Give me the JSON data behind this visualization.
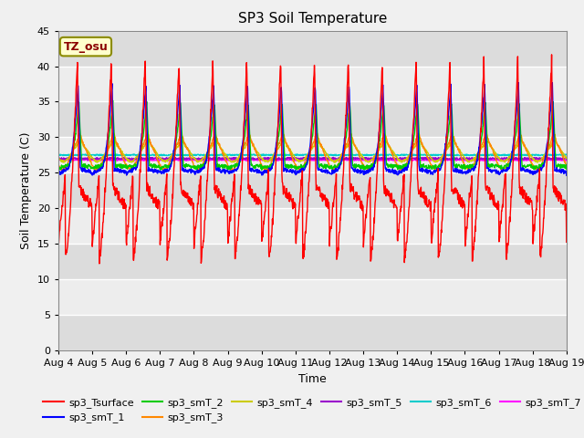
{
  "title": "SP3 Soil Temperature",
  "xlabel": "Time",
  "ylabel": "Soil Temperature (C)",
  "ylim": [
    0,
    45
  ],
  "annotation": "TZ_osu",
  "series_names": [
    "sp3_Tsurface",
    "sp3_smT_1",
    "sp3_smT_2",
    "sp3_smT_3",
    "sp3_smT_4",
    "sp3_smT_5",
    "sp3_smT_6",
    "sp3_smT_7"
  ],
  "series_colors": [
    "#FF0000",
    "#0000FF",
    "#00CC00",
    "#FF8800",
    "#CCCC00",
    "#9900CC",
    "#00CCCC",
    "#FF00FF"
  ],
  "bg_color": "#DCDCDC",
  "title_fontsize": 11,
  "tick_fontsize": 8,
  "ylabel_fontsize": 9,
  "xlabel_fontsize": 9
}
